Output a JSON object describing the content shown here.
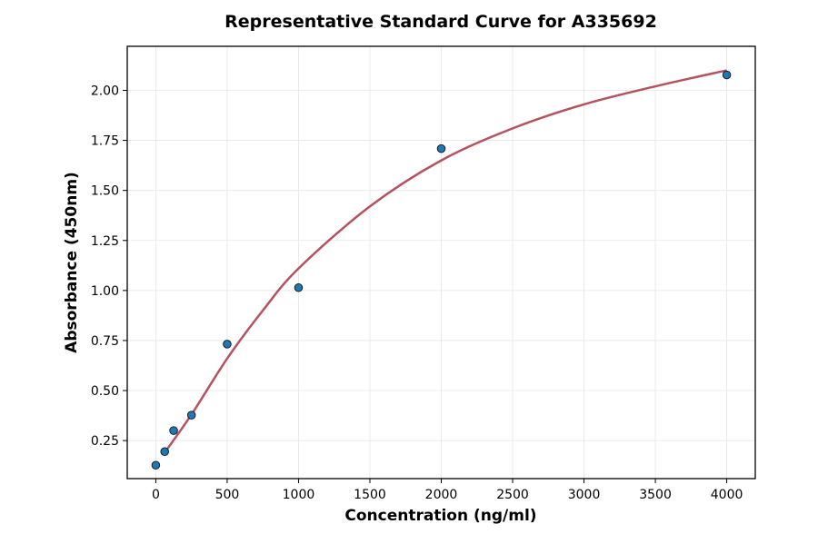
{
  "chart_data": {
    "type": "scatter",
    "title": "Representative Standard Curve for A335692",
    "xlabel": "Concentration (ng/ml)",
    "ylabel": "Absorbance (450nm)",
    "xlim": [
      -200,
      4200
    ],
    "ylim": [
      0.06,
      2.22
    ],
    "xticks": [
      0,
      500,
      1000,
      1500,
      2000,
      2500,
      3000,
      3500,
      4000
    ],
    "yticks": [
      0.25,
      0.5,
      0.75,
      1.0,
      1.25,
      1.5,
      1.75,
      2.0
    ],
    "grid": true,
    "points": {
      "x": [
        0,
        62.5,
        125,
        250,
        500,
        1000,
        2000,
        4000
      ],
      "y": [
        0.127,
        0.195,
        0.3,
        0.377,
        0.732,
        1.014,
        1.709,
        2.077
      ],
      "color": "#1f77b4"
    },
    "fit_curve": {
      "x": [
        62.5,
        250,
        500,
        750,
        1000,
        1500,
        2000,
        2500,
        3000,
        3500,
        4000
      ],
      "y": [
        0.19,
        0.38,
        0.66,
        0.9,
        1.11,
        1.42,
        1.65,
        1.81,
        1.93,
        2.02,
        2.1
      ],
      "color": "#b5525f"
    }
  }
}
